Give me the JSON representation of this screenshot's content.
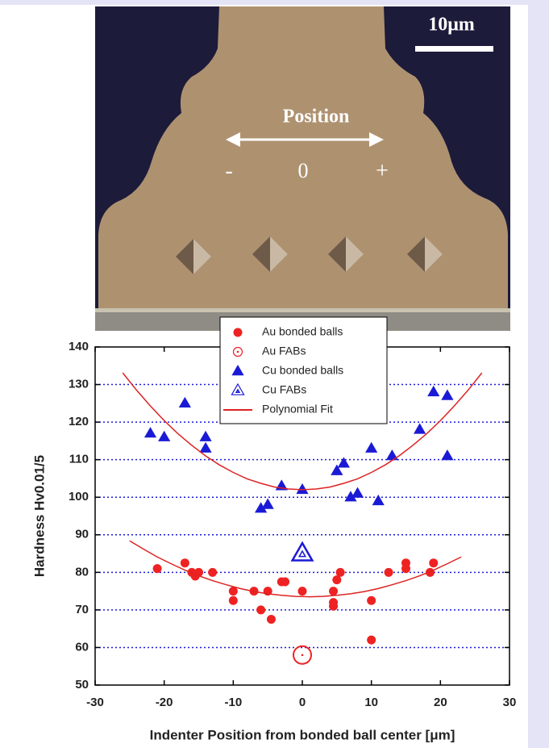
{
  "micrograph": {
    "scale_label": "10μm",
    "position_label": "Position",
    "minus": "-",
    "zero": "0",
    "plus": "+"
  },
  "chart_data": {
    "type": "scatter",
    "x_label": "Indenter Position from bonded ball center [μm]",
    "y_label": "Hardness Hv0.01/5",
    "xlim": [
      -30,
      30
    ],
    "xticks": [
      -30,
      -20,
      -10,
      0,
      10,
      20,
      30
    ],
    "ylim": [
      50,
      140
    ],
    "yticks": [
      50,
      60,
      70,
      80,
      90,
      100,
      110,
      120,
      130,
      140
    ],
    "grid": true,
    "legend": "top-center",
    "series": [
      {
        "name": "Au bonded balls",
        "color": "#ee2222",
        "marker": "circle",
        "x": [
          -21,
          -17,
          -16,
          -15.5,
          -15,
          -15.5,
          -13,
          -10,
          -10,
          -7,
          -6,
          -5,
          -4.5,
          -3,
          -2.5,
          0,
          4.5,
          4.5,
          4.5,
          5,
          5.5,
          10,
          10,
          12.5,
          15,
          15,
          18.5,
          19
        ],
        "values": [
          81,
          82.5,
          80,
          79.5,
          80,
          79,
          80,
          75,
          72.5,
          75,
          70,
          75,
          67.5,
          77.5,
          77.5,
          75,
          75,
          72,
          71,
          78,
          80,
          72.5,
          62,
          80,
          82.5,
          81,
          80,
          82.5
        ]
      },
      {
        "name": "Au FABs",
        "color": "#ee2222",
        "marker": "circle-dot",
        "x": [
          0
        ],
        "values": [
          58
        ]
      },
      {
        "name": "Cu bonded balls",
        "color": "#1a1ad6",
        "marker": "triangle",
        "x": [
          -22,
          -20,
          -17,
          -14,
          -14,
          -3,
          -6,
          -5,
          0,
          5,
          6,
          7,
          8,
          10,
          11,
          13,
          17,
          19,
          21,
          21
        ],
        "values": [
          117,
          116,
          125,
          116,
          113,
          103,
          97,
          98,
          102,
          107,
          109,
          100,
          101,
          113,
          99,
          111,
          118,
          128,
          127,
          111
        ]
      },
      {
        "name": "Cu FABs",
        "color": "#1a1ad6",
        "marker": "triangle-dot",
        "x": [
          0
        ],
        "values": [
          85
        ]
      },
      {
        "name": "Polynomial Fit",
        "color": "#dd2222",
        "marker": "line",
        "x": [
          -26,
          -24,
          -22,
          -20,
          -18,
          -16,
          -14,
          -12,
          -10,
          -8,
          -6,
          -4,
          -2,
          0,
          2,
          4,
          6,
          8,
          10,
          12,
          14,
          16,
          18,
          20,
          22,
          24,
          26,
          null,
          -25,
          -23,
          -21,
          -19,
          -17,
          -15,
          -13,
          -11,
          -9,
          -7,
          -5,
          -3,
          -1,
          1,
          3,
          5,
          7,
          9,
          11,
          13,
          15,
          17,
          19,
          21,
          23
        ],
        "values": [
          133.1,
          128.5,
          124.3,
          120.4,
          116.9,
          113.8,
          111.0,
          108.6,
          106.6,
          104.9,
          103.7,
          102.7,
          102.2,
          102,
          102.2,
          102.7,
          103.7,
          104.9,
          106.6,
          108.6,
          111.0,
          113.8,
          116.9,
          120.4,
          124.3,
          128.5,
          133.1,
          null,
          88.4,
          86.2,
          84.1,
          82.3,
          80.6,
          79.1,
          77.8,
          76.7,
          75.7,
          74.9,
          74.3,
          73.9,
          73.6,
          73.5,
          73.6,
          73.9,
          74.3,
          74.9,
          75.7,
          76.7,
          77.8,
          79.1,
          80.6,
          82.3,
          84.1
        ]
      }
    ]
  }
}
